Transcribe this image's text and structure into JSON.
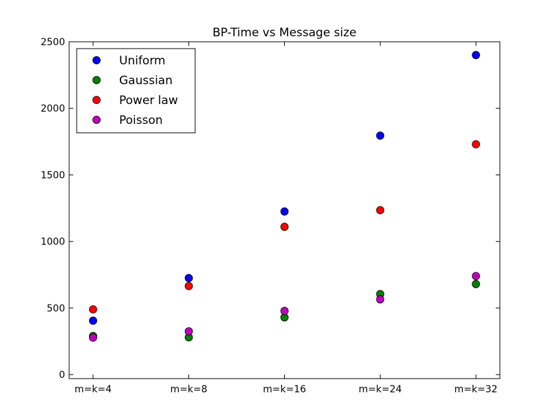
{
  "chart_data": {
    "type": "scatter",
    "title": "BP-Time vs Message size",
    "xlabel": "",
    "ylabel": "",
    "categories": [
      "m=k=4",
      "m=k=8",
      "m=k=16",
      "m=k=24",
      "m=k=32"
    ],
    "xlim": [
      -0.25,
      4.25
    ],
    "ylim": [
      -30,
      2500
    ],
    "yticks": [
      0,
      500,
      1000,
      1500,
      2000,
      2500
    ],
    "grid": false,
    "legend_position": "top-left",
    "series": [
      {
        "name": "Uniform",
        "color": "#0000ff",
        "values": [
          405,
          725,
          1225,
          1795,
          2400
        ]
      },
      {
        "name": "Gaussian",
        "color": "#008000",
        "values": [
          290,
          280,
          430,
          605,
          680
        ]
      },
      {
        "name": "Power law",
        "color": "#ff0000",
        "values": [
          490,
          665,
          1110,
          1235,
          1730
        ]
      },
      {
        "name": "Poisson",
        "color": "#bf00bf",
        "values": [
          278,
          325,
          478,
          565,
          740
        ]
      }
    ]
  }
}
